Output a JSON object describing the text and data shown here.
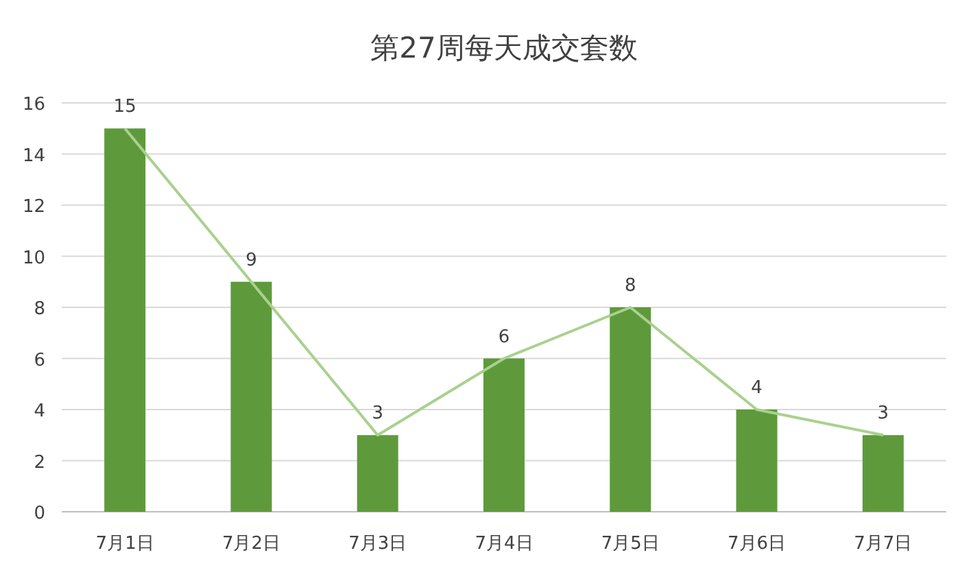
{
  "chart_data": {
    "type": "bar",
    "title": "第27周每天成交套数",
    "categories": [
      "7月1日",
      "7月2日",
      "7月3日",
      "7月4日",
      "7月5日",
      "7月6日",
      "7月7日"
    ],
    "series": [
      {
        "color": "#5e9a3c",
        "values": [
          15,
          9,
          3,
          6,
          8,
          4,
          3
        ],
        "value_labels": [
          "15",
          "9",
          "3",
          "6",
          "8",
          "4",
          "3"
        ]
      },
      {
        "type": "line",
        "color": "#a9d18e",
        "values": [
          15,
          9,
          3,
          6,
          8,
          4,
          3
        ]
      }
    ],
    "ylim": [
      0,
      16
    ],
    "yticks": [
      0,
      2,
      4,
      6,
      8,
      10,
      12,
      14,
      16
    ],
    "grid": "y"
  }
}
